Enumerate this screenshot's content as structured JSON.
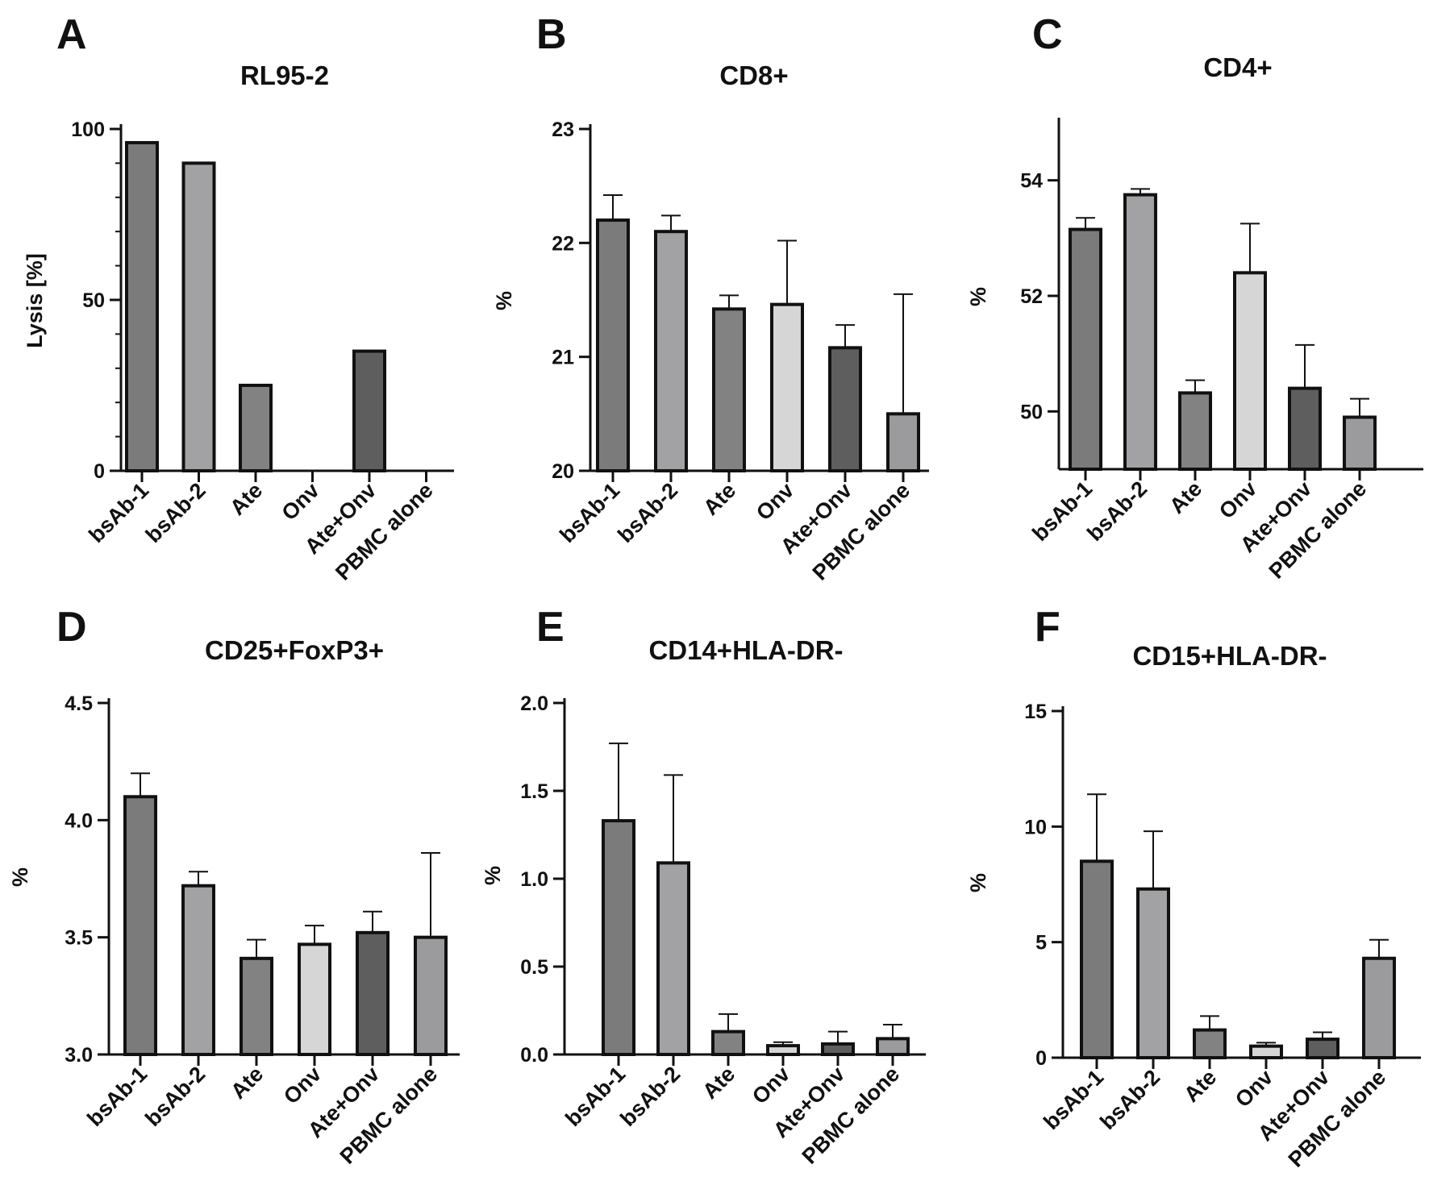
{
  "figure": {
    "categories": [
      "bsAb-1",
      "bsAb-2",
      "Ate",
      "Onv",
      "Ate+Onv",
      "PBMC alone"
    ]
  },
  "palette": {
    "bsAb-1": "#7b7b7b",
    "bsAb-2": "#a2a2a4",
    "Ate": "#828282",
    "Onv": "#d6d6d6",
    "Ate+Onv": "#5e5e5e",
    "PBMC alone": "#9b9b9d",
    "stroke": "#111111"
  },
  "chart_data": [
    {
      "type": "bar",
      "panel": "A",
      "title": "RL95-2",
      "ylabel": "Lysis [%]",
      "ylim": [
        0,
        100
      ],
      "yticks": [
        0,
        50,
        100
      ],
      "categories": [
        "bsAb-1",
        "bsAb-2",
        "Ate",
        "Onv",
        "Ate+Onv",
        "PBMC alone"
      ],
      "values": [
        96,
        90,
        25,
        0,
        35,
        0
      ],
      "errors": [
        0,
        0,
        0,
        0,
        0,
        0
      ]
    },
    {
      "type": "bar",
      "panel": "B",
      "title": "CD8+",
      "ylabel": "%",
      "ylim": [
        20,
        23
      ],
      "yticks": [
        20,
        21,
        22,
        23
      ],
      "categories": [
        "bsAb-1",
        "bsAb-2",
        "Ate",
        "Onv",
        "Ate+Onv",
        "PBMC alone"
      ],
      "values": [
        22.2,
        22.1,
        21.42,
        21.46,
        21.08,
        20.5
      ],
      "errors": [
        0.22,
        0.14,
        0.12,
        0.56,
        0.2,
        1.05
      ]
    },
    {
      "type": "bar",
      "panel": "C",
      "title": "CD4+",
      "ylabel": "%",
      "ylim": [
        49,
        55
      ],
      "yticks": [
        50,
        52,
        54
      ],
      "categories": [
        "bsAb-1",
        "bsAb-2",
        "Ate",
        "Onv",
        "Ate+Onv",
        "PBMC alone"
      ],
      "values": [
        53.15,
        53.75,
        50.32,
        52.4,
        50.4,
        49.9
      ],
      "errors": [
        0.2,
        0.1,
        0.22,
        0.85,
        0.75,
        0.32
      ]
    },
    {
      "type": "bar",
      "panel": "D",
      "title": "CD25+FoxP3+",
      "ylabel": "%",
      "ylim": [
        3.0,
        4.5
      ],
      "yticks": [
        "3.0",
        "3.5",
        "4.0",
        "4.5"
      ],
      "categories": [
        "bsAb-1",
        "bsAb-2",
        "Ate",
        "Onv",
        "Ate+Onv",
        "PBMC alone"
      ],
      "values": [
        4.1,
        3.72,
        3.41,
        3.47,
        3.52,
        3.5
      ],
      "errors": [
        0.1,
        0.06,
        0.08,
        0.08,
        0.09,
        0.36
      ]
    },
    {
      "type": "bar",
      "panel": "E",
      "title": "CD14+HLA-DR-",
      "ylabel": "%",
      "ylim": [
        0,
        2.0
      ],
      "yticks": [
        "0.0",
        "0.5",
        "1.0",
        "1.5",
        "2.0"
      ],
      "categories": [
        "bsAb-1",
        "bsAb-2",
        "Ate",
        "Onv",
        "Ate+Onv",
        "PBMC alone"
      ],
      "values": [
        1.33,
        1.09,
        0.13,
        0.05,
        0.06,
        0.09
      ],
      "errors": [
        0.44,
        0.5,
        0.1,
        0.02,
        0.07,
        0.08
      ]
    },
    {
      "type": "bar",
      "panel": "F",
      "title": "CD15+HLA-DR-",
      "ylabel": "%",
      "ylim": [
        0,
        15
      ],
      "yticks": [
        0,
        5,
        10,
        15
      ],
      "categories": [
        "bsAb-1",
        "bsAb-2",
        "Ate",
        "Onv",
        "Ate+Onv",
        "PBMC alone"
      ],
      "values": [
        8.5,
        7.3,
        1.2,
        0.5,
        0.8,
        4.3
      ],
      "errors": [
        2.9,
        2.5,
        0.6,
        0.15,
        0.3,
        0.8
      ]
    }
  ]
}
